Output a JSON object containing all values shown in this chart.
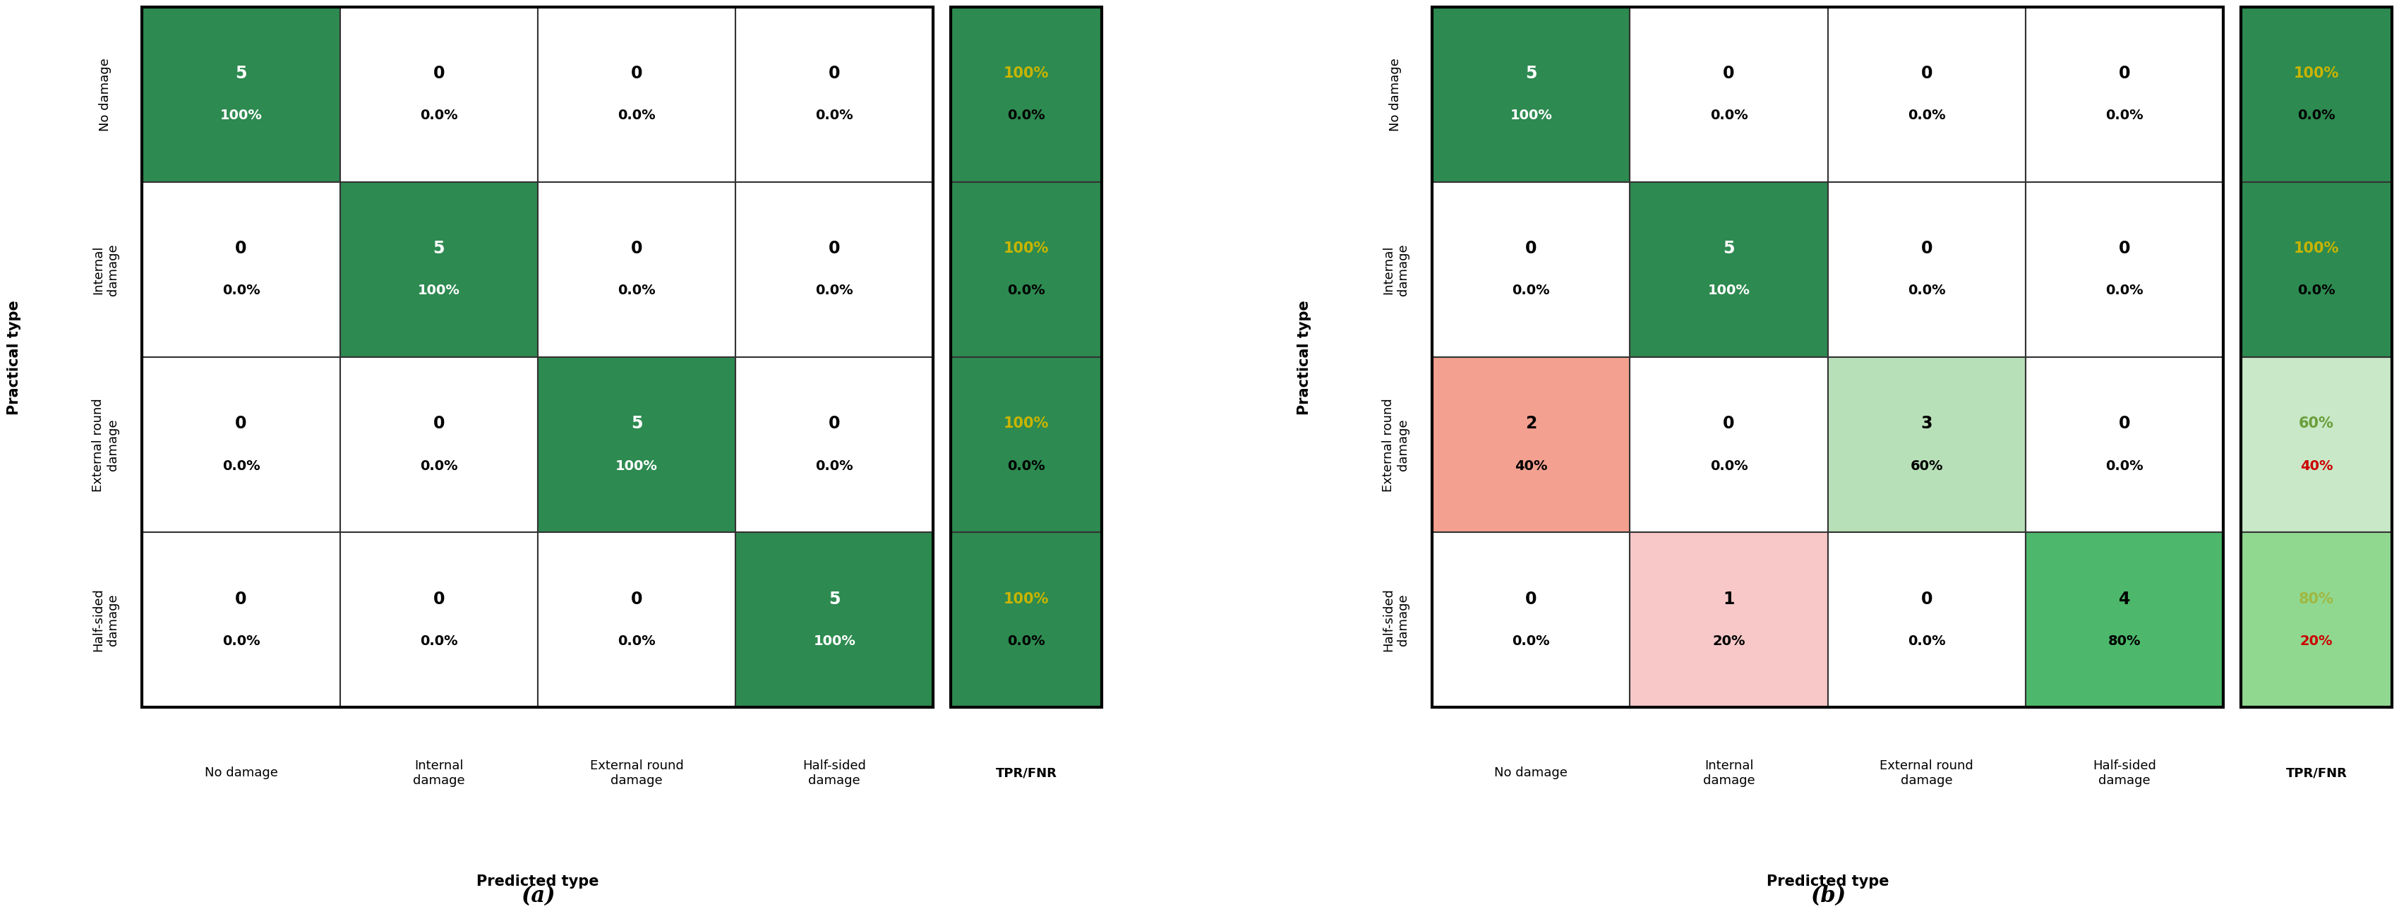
{
  "chart_a": {
    "matrix": [
      [
        5,
        0,
        0,
        0
      ],
      [
        0,
        5,
        0,
        0
      ],
      [
        0,
        0,
        5,
        0
      ],
      [
        0,
        0,
        0,
        5
      ]
    ],
    "percentages": [
      [
        "100%",
        "0.0%",
        "0.0%",
        "0.0%"
      ],
      [
        "0.0%",
        "100%",
        "0.0%",
        "0.0%"
      ],
      [
        "0.0%",
        "0.0%",
        "100%",
        "0.0%"
      ],
      [
        "0.0%",
        "0.0%",
        "0.0%",
        "100%"
      ]
    ],
    "tpr_fnr": [
      [
        "100%",
        "0.0%"
      ],
      [
        "100%",
        "0.0%"
      ],
      [
        "100%",
        "0.0%"
      ],
      [
        "100%",
        "0.0%"
      ]
    ],
    "cell_colors": [
      [
        "#2d8a50",
        "#ffffff",
        "#ffffff",
        "#ffffff"
      ],
      [
        "#ffffff",
        "#2d8a50",
        "#ffffff",
        "#ffffff"
      ],
      [
        "#ffffff",
        "#ffffff",
        "#2d8a50",
        "#ffffff"
      ],
      [
        "#ffffff",
        "#ffffff",
        "#ffffff",
        "#2d8a50"
      ]
    ],
    "tpr_colors": [
      "#2d8a50",
      "#2d8a50",
      "#2d8a50",
      "#2d8a50"
    ],
    "tpr_text_colors": [
      "#c8b400",
      "#c8b400",
      "#c8b400",
      "#c8b400"
    ],
    "fnr_text_colors": [
      "#000000",
      "#000000",
      "#000000",
      "#000000"
    ],
    "label": "(a)"
  },
  "chart_b": {
    "matrix": [
      [
        5,
        0,
        0,
        0
      ],
      [
        0,
        5,
        0,
        0
      ],
      [
        2,
        0,
        3,
        0
      ],
      [
        0,
        1,
        0,
        4
      ]
    ],
    "percentages": [
      [
        "100%",
        "0.0%",
        "0.0%",
        "0.0%"
      ],
      [
        "0.0%",
        "100%",
        "0.0%",
        "0.0%"
      ],
      [
        "40%",
        "0.0%",
        "60%",
        "0.0%"
      ],
      [
        "0.0%",
        "20%",
        "0.0%",
        "80%"
      ]
    ],
    "tpr_fnr": [
      [
        "100%",
        "0.0%"
      ],
      [
        "100%",
        "0.0%"
      ],
      [
        "60%",
        "40%"
      ],
      [
        "80%",
        "20%"
      ]
    ],
    "cell_colors": [
      [
        "#2d8a50",
        "#ffffff",
        "#ffffff",
        "#ffffff"
      ],
      [
        "#ffffff",
        "#2d8a50",
        "#ffffff",
        "#ffffff"
      ],
      [
        "#f4a090",
        "#ffffff",
        "#b8e0b8",
        "#ffffff"
      ],
      [
        "#ffffff",
        "#f8c8c8",
        "#ffffff",
        "#4db86b"
      ]
    ],
    "tpr_colors": [
      "#2d8a50",
      "#2d8a50",
      "#c8e8c8",
      "#90d890"
    ],
    "tpr_text_colors": [
      "#c8b400",
      "#c8b400",
      "#6a9e3a",
      "#a0b840"
    ],
    "fnr_text_colors": [
      "#000000",
      "#000000",
      "#cc0000",
      "#cc0000"
    ],
    "label": "(b)"
  },
  "row_labels": [
    "No damage",
    "Internal\ndamage",
    "External round\ndamage",
    "Half-sided\ndamage"
  ],
  "col_labels": [
    "No damage",
    "Internal\ndamage",
    "External round\ndamage",
    "Half-sided\ndamage"
  ],
  "xlabel": "Predicted type",
  "ylabel": "Practical type",
  "tpr_fnr_label": "TPR/FNR",
  "num_fontsize": 17,
  "pct_fontsize": 14,
  "tpr_fontsize": 15,
  "label_fontsize": 13,
  "axis_label_fontsize": 15,
  "sublabel_fontsize": 22
}
